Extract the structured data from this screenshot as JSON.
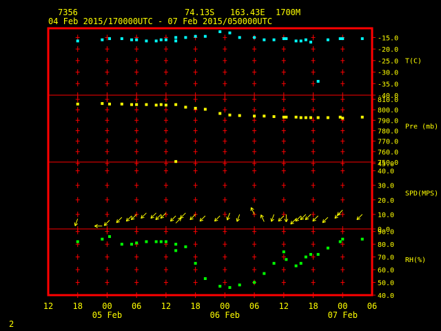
{
  "header": {
    "station": "7356",
    "lat": "74.13S",
    "lon": "163.43E",
    "elev": "1700M",
    "range": "04 Feb 2015/170000UTC - 07 Feb 2015/050000UTC"
  },
  "page_number": "2",
  "colors": {
    "frame": "#ff0000",
    "gridline": "#ff0000",
    "text": "#ffff00",
    "temperature": "#00ffff",
    "pressure": "#ffff00",
    "wind": "#ffff00",
    "humidity": "#00ff00"
  },
  "chart_data": {
    "type": "scatter",
    "x_axis": {
      "unit": "hours since 04 Feb 2015 12UTC",
      "range": [
        12,
        78
      ],
      "ticks": [
        12,
        18,
        24,
        30,
        36,
        42,
        48,
        54,
        60,
        66,
        72,
        78
      ],
      "tick_labels": [
        "12",
        "18",
        "00",
        "06",
        "12",
        "18",
        "00",
        "06",
        "12",
        "18",
        "00",
        "06"
      ],
      "date_labels": [
        {
          "x": 24,
          "text": "05 Feb"
        },
        {
          "x": 48,
          "text": "06 Feb"
        },
        {
          "x": 72,
          "text": "07 Feb"
        }
      ]
    },
    "panels": [
      {
        "label": "T(C)",
        "ticks": [
          -15.0,
          -20.0,
          -25.0,
          -30.0,
          -35.0,
          -40.0
        ],
        "tick_labels": [
          "-15.0",
          "-20.0",
          "-25.0",
          "-30.0",
          "-35.0",
          "-40.0"
        ],
        "ylim": [
          -40,
          -11
        ],
        "series": [
          {
            "color": "#00ffff",
            "x": [
              18,
              23,
              24.5,
              27,
              29,
              30,
              32,
              34,
              35,
              36,
              38,
              38,
              40,
              42,
              44,
              47,
              49,
              51,
              54,
              56,
              58,
              60,
              60.5,
              62.5,
              63.5,
              64.5,
              65.5,
              67,
              69,
              71.5,
              72,
              76
            ],
            "y": [
              -16.5,
              -16.0,
              -15.5,
              -15.5,
              -16.0,
              -16.0,
              -16.5,
              -16.5,
              -16.0,
              -16.0,
              -15.0,
              -16.5,
              -15.0,
              -14.5,
              -14.5,
              -12.5,
              -13.0,
              -15.0,
              -15.0,
              -16.0,
              -16.0,
              -15.5,
              -15.5,
              -16.5,
              -16.5,
              -16.0,
              -17.0,
              -34.0,
              -16.0,
              -15.5,
              -15.5,
              -15.5
            ]
          }
        ]
      },
      {
        "label": "Pre (mb)",
        "ticks": [
          810,
          800,
          790,
          780,
          770,
          760,
          750
        ],
        "tick_labels": [
          "810.0",
          "800.0",
          "790.0",
          "780.0",
          "770.0",
          "760.0",
          "750.0"
        ],
        "ylim": [
          750,
          814
        ],
        "series": [
          {
            "color": "#ffff00",
            "x": [
              18,
              23,
              24.5,
              27,
              29,
              30,
              32,
              34,
              35,
              36,
              38,
              38,
              40,
              42,
              44,
              47,
              49,
              51,
              54,
              56,
              58,
              60,
              60.5,
              62.5,
              63.5,
              64.5,
              65.5,
              67,
              69,
              71.5,
              72,
              76
            ],
            "y": [
              805.5,
              806,
              805.5,
              805.5,
              805,
              805,
              805,
              804.5,
              805,
              804.5,
              750.5,
              805,
              802.5,
              801.5,
              800.5,
              796.5,
              795,
              794.5,
              794,
              794,
              793.5,
              793,
              793,
              793,
              792.5,
              792.5,
              792.5,
              792.5,
              792.5,
              793,
              792,
              793
            ]
          }
        ]
      },
      {
        "label": "SPD(MPS)",
        "ticks": [
          45,
          40,
          30,
          20,
          10,
          0
        ],
        "tick_labels": [
          "45.0",
          "40.0",
          "30.0",
          "20.0",
          "10.0",
          "0.0"
        ],
        "ylim": [
          0,
          46
        ],
        "series": [
          {
            "color": "#ffff00",
            "x": [
              18,
              23,
              24.5,
              27,
              29,
              30,
              32,
              34,
              35,
              36,
              38,
              38,
              40,
              42,
              44,
              47,
              49,
              51,
              54,
              56,
              58,
              60,
              60.5,
              62.5,
              63.5,
              64.5,
              65.5,
              67,
              69,
              71.5,
              72,
              76
            ],
            "y": [
              7,
              2,
              6,
              8,
              9,
              10,
              11,
              11,
              10,
              11,
              4,
              9,
              11,
              10,
              9,
              9,
              11,
              10,
              10,
              5,
              10,
              9,
              10,
              7,
              9,
              10,
              10,
              9,
              8,
              11,
              13,
              10
            ],
            "dir": [
              200,
              270,
              225,
              225,
              225,
              225,
              225,
              225,
              225,
              225,
              45,
              225,
              225,
              225,
              225,
              225,
              200,
              200,
              335,
              335,
              200,
              225,
              180,
              225,
              225,
              225,
              225,
              225,
              225,
              225,
              225,
              225
            ]
          }
        ]
      },
      {
        "label": "RH(%)",
        "ticks": [
          90,
          80,
          70,
          60,
          50,
          40
        ],
        "tick_labels": [
          "90.0",
          "80.0",
          "70.0",
          "60.0",
          "50.0",
          "40.0"
        ],
        "ylim": [
          40,
          92
        ],
        "series": [
          {
            "color": "#00ff00",
            "x": [
              18,
              23,
              24.5,
              27,
              29,
              30,
              32,
              34,
              35,
              36,
              38,
              38,
              40,
              42,
              44,
              47,
              49,
              51,
              54,
              56,
              58,
              60,
              60.5,
              62.5,
              63.5,
              64.5,
              65.5,
              67,
              69,
              71.5,
              72,
              76
            ],
            "y": [
              82,
              84,
              86,
              80,
              80,
              81,
              82,
              82,
              82,
              82,
              80,
              75,
              78,
              65,
              53,
              47,
              46,
              48,
              50,
              57,
              65,
              74,
              68,
              63,
              65,
              70,
              72,
              72,
              77,
              82,
              84,
              84
            ]
          }
        ]
      }
    ]
  }
}
